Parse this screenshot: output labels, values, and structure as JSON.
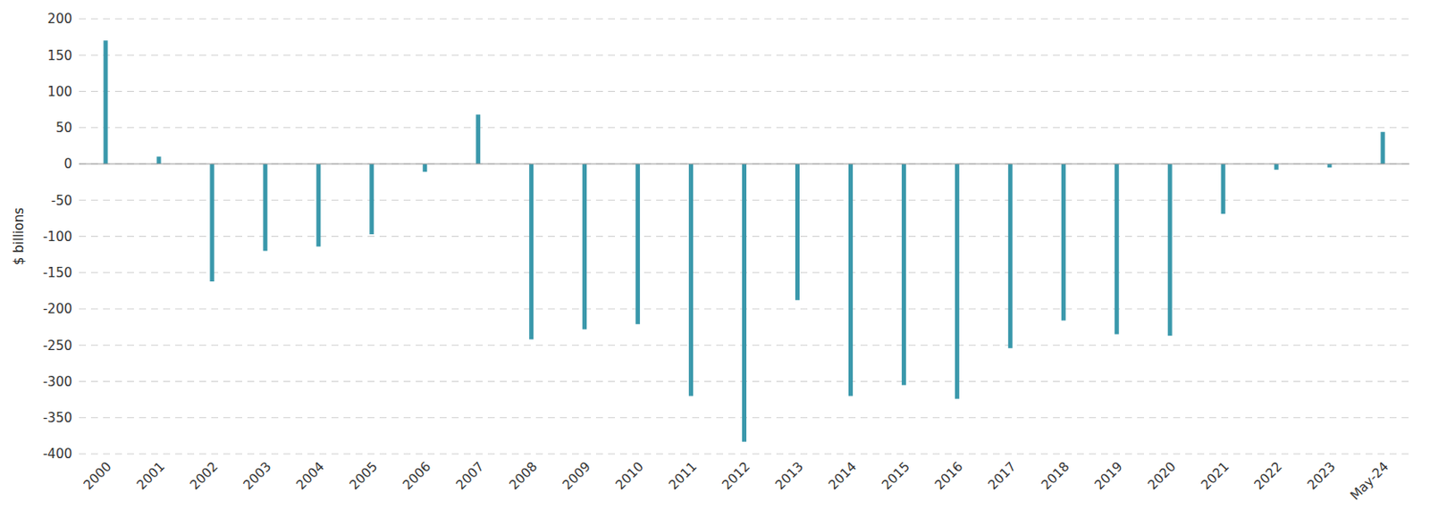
{
  "chart_data": {
    "type": "bar",
    "y_label": "$ billions",
    "categories": [
      "2000",
      "2001",
      "2002",
      "2003",
      "2004",
      "2005",
      "2006",
      "2007",
      "2008",
      "2009",
      "2010",
      "2011",
      "2012",
      "2013",
      "2014",
      "2015",
      "2016",
      "2017",
      "2018",
      "2019",
      "2020",
      "2021",
      "2022",
      "2023",
      "May-24"
    ],
    "values": [
      170,
      10,
      -162,
      -120,
      -114,
      -97,
      -11,
      68,
      -242,
      -228,
      -221,
      -320,
      -383,
      -188,
      -320,
      -305,
      -324,
      -254,
      -216,
      -235,
      -237,
      -69,
      -8,
      -5,
      44
    ],
    "color": "#3a98ab",
    "ylim": [
      -400,
      200
    ],
    "yticks": [
      -400,
      -350,
      -300,
      -250,
      -200,
      -150,
      -100,
      -50,
      0,
      50,
      100,
      150,
      200
    ],
    "grid": true
  }
}
